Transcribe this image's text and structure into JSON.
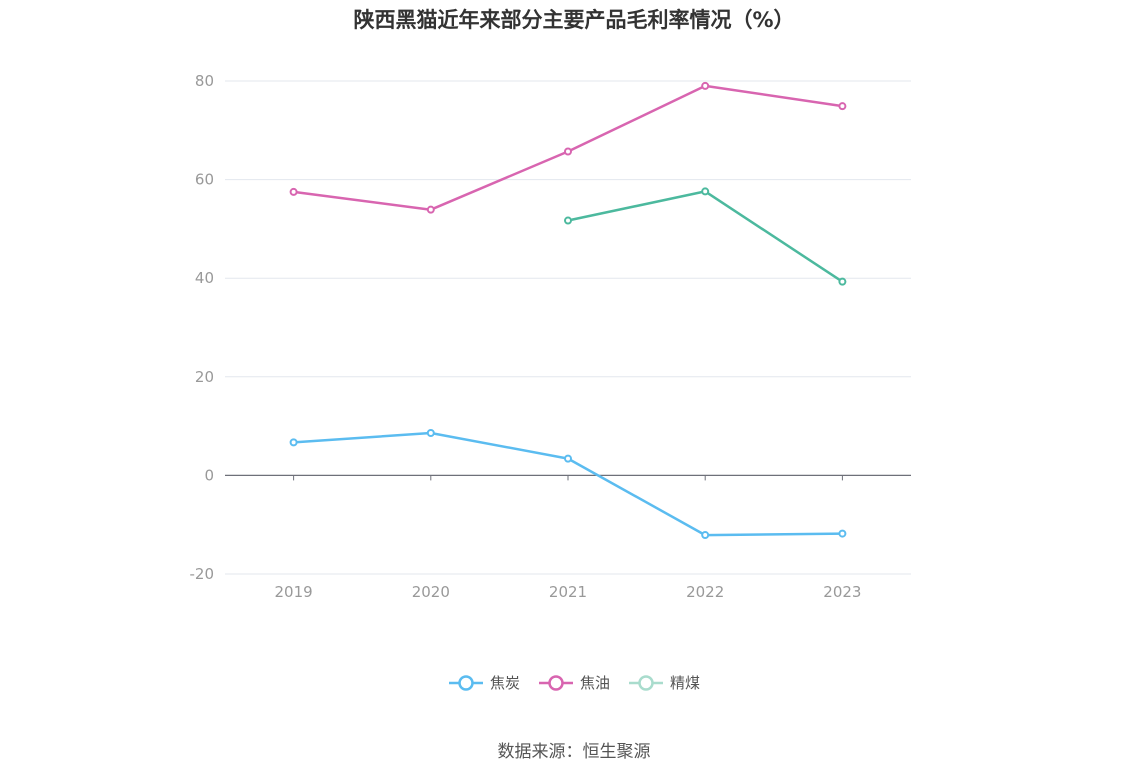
{
  "chart_data": {
    "type": "line",
    "title": "陕西黑猫近年来部分主要产品毛利率情况（%）",
    "categories": [
      "2019",
      "2020",
      "2021",
      "2022",
      "2023"
    ],
    "ylim": [
      -20,
      80
    ],
    "yticks": [
      "-20",
      "0",
      "20",
      "40",
      "60",
      "80"
    ],
    "grid": true,
    "legend_position": "bottom",
    "series": [
      {
        "name": "焦炭",
        "color": "#5bbcf0",
        "values": [
          6.7,
          8.6,
          3.4,
          -12.1,
          -11.8
        ]
      },
      {
        "name": "焦油",
        "color": "#d865b0",
        "values": [
          57.5,
          53.9,
          65.7,
          79.0,
          74.9
        ]
      },
      {
        "name": "精煤",
        "color": "#4cb99e",
        "legend_color": "#a9dccd",
        "values": [
          null,
          null,
          51.7,
          57.6,
          39.3
        ]
      }
    ],
    "source": "数据来源：恒生聚源"
  }
}
